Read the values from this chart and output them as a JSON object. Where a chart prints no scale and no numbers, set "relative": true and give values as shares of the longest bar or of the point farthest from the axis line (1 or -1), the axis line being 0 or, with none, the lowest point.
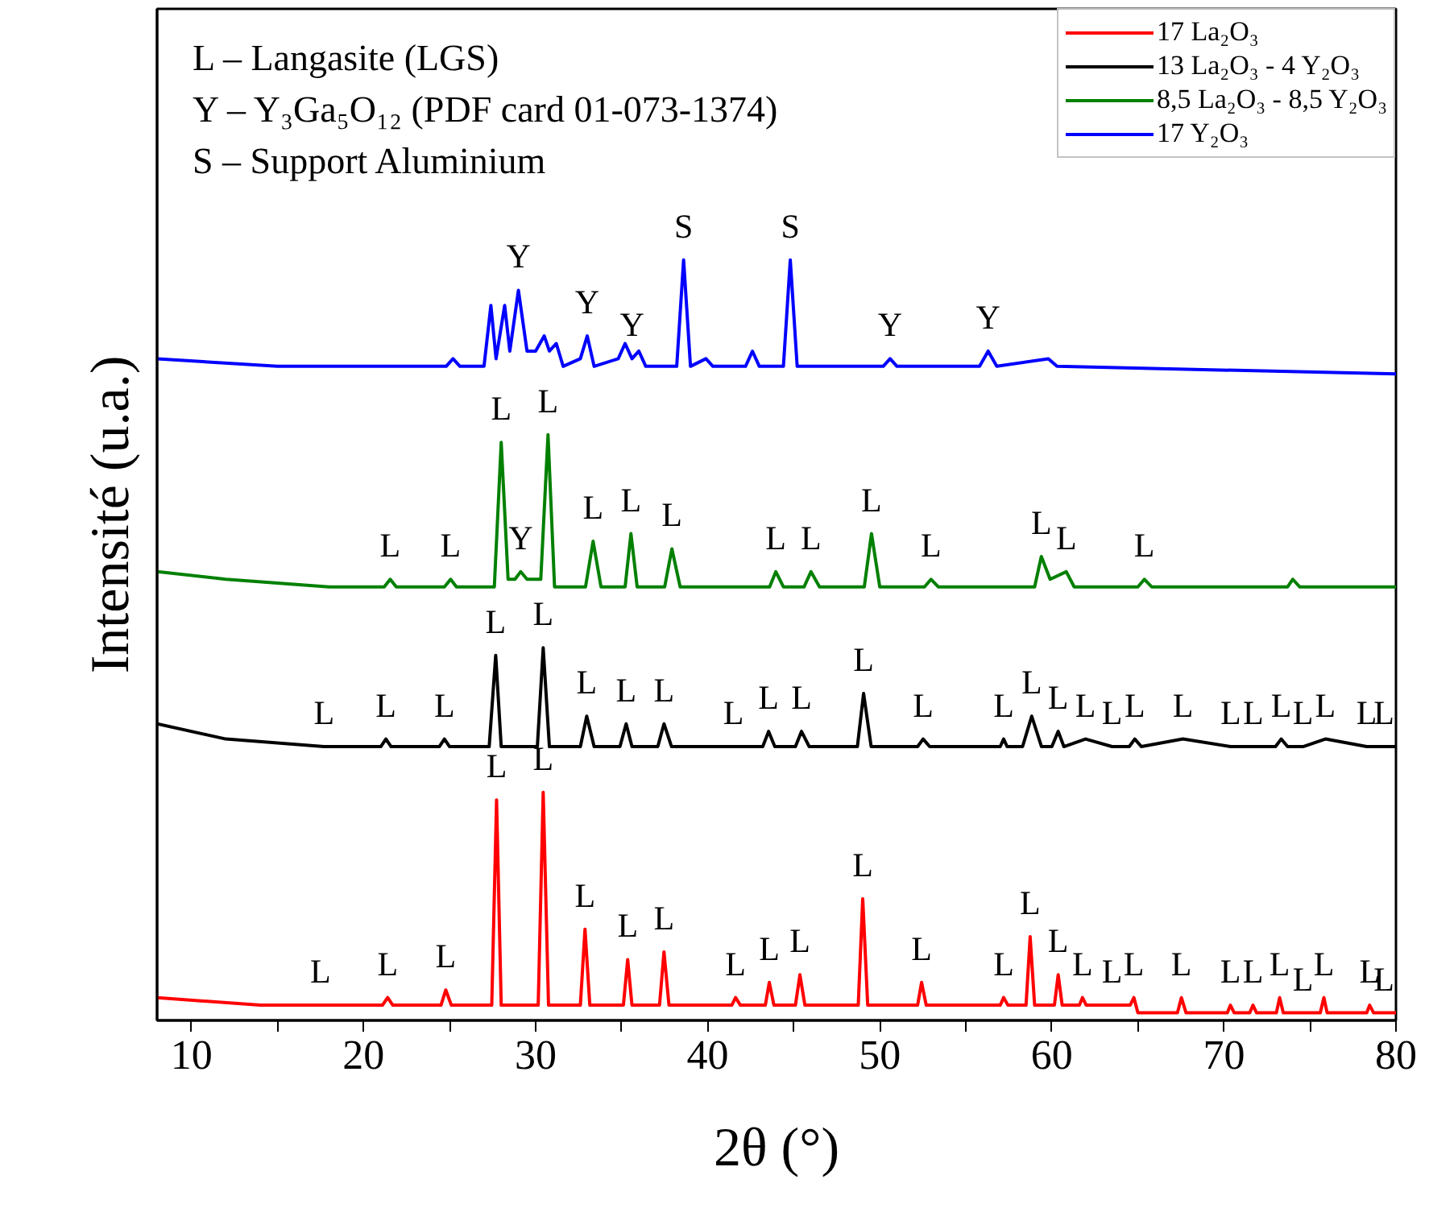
{
  "chart_data": {
    "type": "line",
    "relative": true,
    "xlabel": "2θ (°)",
    "ylabel": "Intensité (u.a.)",
    "xlim": [
      8,
      80
    ],
    "xticks": [
      10,
      {
        "value": 15,
        "label": null
      },
      20,
      {
        "value": 25,
        "label": null
      },
      30,
      {
        "value": 35,
        "label": null
      },
      40,
      {
        "value": 45,
        "label": null
      },
      50,
      {
        "value": 55,
        "label": null
      },
      60,
      {
        "value": 65,
        "label": null
      },
      70,
      {
        "value": 75,
        "label": null
      },
      80
    ],
    "tick_labels": "x",
    "legend": "top right",
    "series": [
      {
        "name": "17 La₂O₃",
        "color": "#ff0000",
        "x": [
          8,
          14,
          17.2,
          17.5,
          17.8,
          21.1,
          21.4,
          21.7,
          24.5,
          24.78,
          25.1,
          27.45,
          27.73,
          28.0,
          30.15,
          30.44,
          30.75,
          32.6,
          32.87,
          33.15,
          35.1,
          35.35,
          35.6,
          37.2,
          37.46,
          37.75,
          41.4,
          41.62,
          41.9,
          43.35,
          43.58,
          43.85,
          45.1,
          45.36,
          45.65,
          48.75,
          49.01,
          49.3,
          52.2,
          52.43,
          52.7,
          57.0,
          57.2,
          57.45,
          58.5,
          58.74,
          59.0,
          60.15,
          60.37,
          60.6,
          61.6,
          61.78,
          62.0,
          63.5,
          64.55,
          64.77,
          65.0,
          67.3,
          67.53,
          67.8,
          70.2,
          70.38,
          70.6,
          71.5,
          71.69,
          71.9,
          73.05,
          73.24,
          73.45,
          74.6,
          75.6,
          75.81,
          76.0,
          78.3,
          78.47,
          78.7,
          79.9,
          80
        ],
        "values": [
          0.03,
          0.02,
          0.02,
          0.02,
          0.02,
          0.02,
          0.03,
          0.02,
          0.02,
          0.04,
          0.02,
          0.02,
          0.29,
          0.02,
          0.02,
          0.3,
          0.02,
          0.02,
          0.12,
          0.02,
          0.02,
          0.08,
          0.02,
          0.02,
          0.09,
          0.02,
          0.02,
          0.03,
          0.02,
          0.02,
          0.05,
          0.02,
          0.02,
          0.06,
          0.02,
          0.02,
          0.16,
          0.02,
          0.02,
          0.05,
          0.02,
          0.02,
          0.03,
          0.02,
          0.02,
          0.11,
          0.02,
          0.02,
          0.06,
          0.02,
          0.02,
          0.03,
          0.02,
          0.02,
          0.02,
          0.03,
          0.01,
          0.01,
          0.03,
          0.01,
          0.01,
          0.02,
          0.01,
          0.01,
          0.02,
          0.01,
          0.01,
          0.03,
          0.01,
          0.01,
          0.01,
          0.03,
          0.01,
          0.01,
          0.02,
          0.01,
          0.01,
          0.01
        ]
      },
      {
        "name": "13 La₂O₃ - 4 Y₂O₃",
        "color": "#000000",
        "x": [
          8,
          12,
          17.7,
          21.0,
          21.3,
          21.6,
          24.4,
          24.7,
          25.0,
          27.3,
          27.68,
          28.0,
          30.1,
          30.44,
          30.8,
          32.6,
          32.97,
          33.4,
          34.9,
          35.26,
          35.6,
          37.1,
          37.46,
          37.9,
          41.5,
          43.2,
          43.54,
          43.9,
          45.1,
          45.45,
          45.9,
          48.7,
          49.06,
          49.5,
          52.2,
          52.52,
          52.9,
          57.0,
          57.2,
          57.4,
          58.3,
          58.83,
          59.4,
          60.0,
          60.37,
          60.7,
          61.96,
          63.5,
          64.5,
          64.82,
          65.2,
          67.62,
          70.4,
          71.7,
          73.0,
          73.33,
          73.7,
          74.6,
          75.9,
          78.3,
          79.9,
          80
        ],
        "values": [
          0.39,
          0.37,
          0.36,
          0.36,
          0.37,
          0.36,
          0.36,
          0.37,
          0.36,
          0.36,
          0.48,
          0.36,
          0.36,
          0.49,
          0.36,
          0.36,
          0.4,
          0.36,
          0.36,
          0.39,
          0.36,
          0.36,
          0.39,
          0.36,
          0.36,
          0.36,
          0.38,
          0.36,
          0.36,
          0.38,
          0.36,
          0.36,
          0.43,
          0.36,
          0.36,
          0.37,
          0.36,
          0.36,
          0.37,
          0.36,
          0.36,
          0.4,
          0.36,
          0.36,
          0.38,
          0.36,
          0.37,
          0.36,
          0.36,
          0.37,
          0.36,
          0.37,
          0.36,
          0.36,
          0.36,
          0.37,
          0.36,
          0.36,
          0.37,
          0.36,
          0.36,
          0.36
        ]
      },
      {
        "name": "8,5 La₂O₃ - 8,5 Y₂O₃",
        "color": "#008000",
        "x": [
          8,
          12,
          18,
          21.2,
          21.55,
          21.9,
          24.7,
          25.06,
          25.4,
          27.6,
          28.0,
          28.4,
          28.8,
          29.13,
          29.5,
          30.3,
          30.72,
          31.1,
          32.9,
          33.34,
          33.8,
          35.2,
          35.54,
          35.9,
          37.5,
          37.92,
          38.4,
          43.6,
          43.96,
          44.4,
          45.6,
          46.0,
          46.5,
          49.1,
          49.52,
          50.0,
          52.6,
          52.98,
          53.4,
          59.0,
          59.39,
          59.9,
          60.84,
          61.3,
          65.0,
          65.38,
          65.8,
          73.7,
          74.0,
          74.4,
          80
        ],
        "values": [
          0.59,
          0.58,
          0.57,
          0.57,
          0.58,
          0.57,
          0.57,
          0.58,
          0.57,
          0.57,
          0.76,
          0.58,
          0.58,
          0.59,
          0.58,
          0.58,
          0.77,
          0.57,
          0.57,
          0.63,
          0.57,
          0.57,
          0.64,
          0.57,
          0.57,
          0.62,
          0.57,
          0.57,
          0.59,
          0.57,
          0.57,
          0.59,
          0.57,
          0.57,
          0.64,
          0.57,
          0.57,
          0.58,
          0.57,
          0.57,
          0.61,
          0.58,
          0.59,
          0.57,
          0.57,
          0.58,
          0.57,
          0.57,
          0.58,
          0.57,
          0.57
        ]
      },
      {
        "name": "17 Y₂O₃",
        "color": "#0000ff",
        "x": [
          8,
          15,
          24.8,
          25.2,
          25.6,
          27.0,
          27.4,
          27.7,
          28.2,
          28.5,
          29.0,
          29.5,
          30.0,
          30.5,
          30.8,
          31.2,
          31.6,
          32.6,
          33.0,
          33.4,
          34.8,
          35.2,
          35.6,
          36.0,
          36.4,
          38.2,
          38.6,
          39.0,
          39.9,
          40.3,
          42.2,
          42.6,
          43.0,
          44.4,
          44.8,
          45.2,
          50.2,
          50.6,
          51.0,
          55.8,
          56.3,
          56.8,
          59.8,
          60.3,
          80
        ],
        "values": [
          0.87,
          0.86,
          0.86,
          0.87,
          0.86,
          0.86,
          0.94,
          0.87,
          0.94,
          0.88,
          0.96,
          0.88,
          0.88,
          0.9,
          0.88,
          0.89,
          0.86,
          0.87,
          0.9,
          0.86,
          0.87,
          0.89,
          0.87,
          0.88,
          0.86,
          0.86,
          1.0,
          0.86,
          0.87,
          0.86,
          0.86,
          0.88,
          0.86,
          0.86,
          1.0,
          0.86,
          0.86,
          0.87,
          0.86,
          0.86,
          0.88,
          0.86,
          0.87,
          0.86,
          0.85
        ]
      }
    ],
    "annotations": [
      "L – Langasite (LGS)",
      "Y – Y₃Ga₅O₁₂ (PDF card 01-073-1374)",
      "S – Support Aluminium",
      {
        "text": "Y",
        "x": 29.0,
        "y": 0.96
      },
      {
        "text": "Y",
        "x": 33.0,
        "y": 0.9
      },
      {
        "text": "Y",
        "x": 35.6,
        "y": 0.87
      },
      {
        "text": "S",
        "x": 38.6,
        "y": 1.0
      },
      {
        "text": "S",
        "x": 44.8,
        "y": 1.0
      },
      {
        "text": "Y",
        "x": 50.6,
        "y": 0.87
      },
      {
        "text": "Y",
        "x": 56.3,
        "y": 0.88
      },
      {
        "text": "L",
        "x": 21.55,
        "y": 0.58
      },
      {
        "text": "L",
        "x": 25.06,
        "y": 0.58
      },
      {
        "text": "L",
        "x": 28.0,
        "y": 0.76
      },
      {
        "text": "Y",
        "x": 29.13,
        "y": 0.59
      },
      {
        "text": "L",
        "x": 30.72,
        "y": 0.77
      },
      {
        "text": "L",
        "x": 33.34,
        "y": 0.63
      },
      {
        "text": "L",
        "x": 35.54,
        "y": 0.64
      },
      {
        "text": "L",
        "x": 37.92,
        "y": 0.62
      },
      {
        "text": "L",
        "x": 43.96,
        "y": 0.59
      },
      {
        "text": "L",
        "x": 46.0,
        "y": 0.59
      },
      {
        "text": "L",
        "x": 49.52,
        "y": 0.64
      },
      {
        "text": "L",
        "x": 52.98,
        "y": 0.58
      },
      {
        "text": "L",
        "x": 59.39,
        "y": 0.61
      },
      {
        "text": "L",
        "x": 60.84,
        "y": 0.59
      },
      {
        "text": "L",
        "x": 65.38,
        "y": 0.58
      },
      {
        "text": "L",
        "x": 17.7,
        "y": 0.36
      },
      {
        "text": "L",
        "x": 21.3,
        "y": 0.37
      },
      {
        "text": "L",
        "x": 24.7,
        "y": 0.37
      },
      {
        "text": "L",
        "x": 27.68,
        "y": 0.48
      },
      {
        "text": "L",
        "x": 30.44,
        "y": 0.49
      },
      {
        "text": "L",
        "x": 32.97,
        "y": 0.4
      },
      {
        "text": "L",
        "x": 35.26,
        "y": 0.39
      },
      {
        "text": "L",
        "x": 37.46,
        "y": 0.39
      },
      {
        "text": "L",
        "x": 41.5,
        "y": 0.36
      },
      {
        "text": "L",
        "x": 43.54,
        "y": 0.38
      },
      {
        "text": "L",
        "x": 45.45,
        "y": 0.38
      },
      {
        "text": "L",
        "x": 49.06,
        "y": 0.43
      },
      {
        "text": "L",
        "x": 52.52,
        "y": 0.37
      },
      {
        "text": "L",
        "x": 57.2,
        "y": 0.37
      },
      {
        "text": "L",
        "x": 58.83,
        "y": 0.4
      },
      {
        "text": "L",
        "x": 60.37,
        "y": 0.38
      },
      {
        "text": "L",
        "x": 61.96,
        "y": 0.37
      },
      {
        "text": "L",
        "x": 63.5,
        "y": 0.36
      },
      {
        "text": "L",
        "x": 64.82,
        "y": 0.37
      },
      {
        "text": "L",
        "x": 67.62,
        "y": 0.37
      },
      {
        "text": "L",
        "x": 70.4,
        "y": 0.36
      },
      {
        "text": "L",
        "x": 71.7,
        "y": 0.36
      },
      {
        "text": "L",
        "x": 73.33,
        "y": 0.37
      },
      {
        "text": "L",
        "x": 74.6,
        "y": 0.36
      },
      {
        "text": "L",
        "x": 75.9,
        "y": 0.37
      },
      {
        "text": "L",
        "x": 78.3,
        "y": 0.36
      },
      {
        "text": "L",
        "x": 79.9,
        "y": 0.36
      },
      {
        "text": "L",
        "x": 17.5,
        "y": 0.02
      },
      {
        "text": "L",
        "x": 21.4,
        "y": 0.03
      },
      {
        "text": "L",
        "x": 24.78,
        "y": 0.04
      },
      {
        "text": "L",
        "x": 27.73,
        "y": 0.29
      },
      {
        "text": "L",
        "x": 30.44,
        "y": 0.3
      },
      {
        "text": "L",
        "x": 32.87,
        "y": 0.12
      },
      {
        "text": "L",
        "x": 35.35,
        "y": 0.08
      },
      {
        "text": "L",
        "x": 37.46,
        "y": 0.09
      },
      {
        "text": "L",
        "x": 41.62,
        "y": 0.03
      },
      {
        "text": "L",
        "x": 43.58,
        "y": 0.05
      },
      {
        "text": "L",
        "x": 45.36,
        "y": 0.06
      },
      {
        "text": "L",
        "x": 49.01,
        "y": 0.16
      },
      {
        "text": "L",
        "x": 52.43,
        "y": 0.05
      },
      {
        "text": "L",
        "x": 57.2,
        "y": 0.03
      },
      {
        "text": "L",
        "x": 58.74,
        "y": 0.11
      },
      {
        "text": "L",
        "x": 60.37,
        "y": 0.06
      },
      {
        "text": "L",
        "x": 61.78,
        "y": 0.03
      },
      {
        "text": "L",
        "x": 63.5,
        "y": 0.02
      },
      {
        "text": "L",
        "x": 64.77,
        "y": 0.03
      },
      {
        "text": "L",
        "x": 67.53,
        "y": 0.03
      },
      {
        "text": "L",
        "x": 70.38,
        "y": 0.02
      },
      {
        "text": "L",
        "x": 71.69,
        "y": 0.02
      },
      {
        "text": "L",
        "x": 73.24,
        "y": 0.03
      },
      {
        "text": "L",
        "x": 74.6,
        "y": 0.01
      },
      {
        "text": "L",
        "x": 75.81,
        "y": 0.03
      },
      {
        "text": "L",
        "x": 78.47,
        "y": 0.02
      },
      {
        "text": "L",
        "x": 79.9,
        "y": 0.01
      }
    ]
  }
}
